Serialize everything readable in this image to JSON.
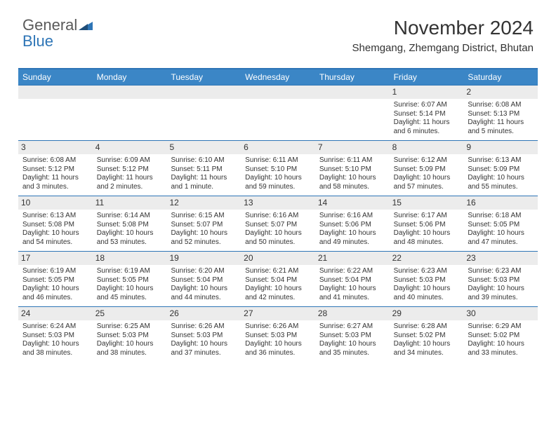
{
  "brand": {
    "word1": "General",
    "word2": "Blue"
  },
  "title": "November 2024",
  "location": "Shemgang, Zhemgang District, Bhutan",
  "colors": {
    "header_bg": "#3b86c6",
    "border": "#2e75b6",
    "daynum_bg": "#ececec",
    "text": "#333333",
    "logo_gray": "#5a5a5a",
    "logo_blue": "#2e75b6"
  },
  "weekdays": [
    "Sunday",
    "Monday",
    "Tuesday",
    "Wednesday",
    "Thursday",
    "Friday",
    "Saturday"
  ],
  "weeks": [
    [
      null,
      null,
      null,
      null,
      null,
      {
        "n": "1",
        "sr": "6:07 AM",
        "ss": "5:14 PM",
        "dl": "11 hours and 6 minutes."
      },
      {
        "n": "2",
        "sr": "6:08 AM",
        "ss": "5:13 PM",
        "dl": "11 hours and 5 minutes."
      }
    ],
    [
      {
        "n": "3",
        "sr": "6:08 AM",
        "ss": "5:12 PM",
        "dl": "11 hours and 3 minutes."
      },
      {
        "n": "4",
        "sr": "6:09 AM",
        "ss": "5:12 PM",
        "dl": "11 hours and 2 minutes."
      },
      {
        "n": "5",
        "sr": "6:10 AM",
        "ss": "5:11 PM",
        "dl": "11 hours and 1 minute."
      },
      {
        "n": "6",
        "sr": "6:11 AM",
        "ss": "5:10 PM",
        "dl": "10 hours and 59 minutes."
      },
      {
        "n": "7",
        "sr": "6:11 AM",
        "ss": "5:10 PM",
        "dl": "10 hours and 58 minutes."
      },
      {
        "n": "8",
        "sr": "6:12 AM",
        "ss": "5:09 PM",
        "dl": "10 hours and 57 minutes."
      },
      {
        "n": "9",
        "sr": "6:13 AM",
        "ss": "5:09 PM",
        "dl": "10 hours and 55 minutes."
      }
    ],
    [
      {
        "n": "10",
        "sr": "6:13 AM",
        "ss": "5:08 PM",
        "dl": "10 hours and 54 minutes."
      },
      {
        "n": "11",
        "sr": "6:14 AM",
        "ss": "5:08 PM",
        "dl": "10 hours and 53 minutes."
      },
      {
        "n": "12",
        "sr": "6:15 AM",
        "ss": "5:07 PM",
        "dl": "10 hours and 52 minutes."
      },
      {
        "n": "13",
        "sr": "6:16 AM",
        "ss": "5:07 PM",
        "dl": "10 hours and 50 minutes."
      },
      {
        "n": "14",
        "sr": "6:16 AM",
        "ss": "5:06 PM",
        "dl": "10 hours and 49 minutes."
      },
      {
        "n": "15",
        "sr": "6:17 AM",
        "ss": "5:06 PM",
        "dl": "10 hours and 48 minutes."
      },
      {
        "n": "16",
        "sr": "6:18 AM",
        "ss": "5:05 PM",
        "dl": "10 hours and 47 minutes."
      }
    ],
    [
      {
        "n": "17",
        "sr": "6:19 AM",
        "ss": "5:05 PM",
        "dl": "10 hours and 46 minutes."
      },
      {
        "n": "18",
        "sr": "6:19 AM",
        "ss": "5:05 PM",
        "dl": "10 hours and 45 minutes."
      },
      {
        "n": "19",
        "sr": "6:20 AM",
        "ss": "5:04 PM",
        "dl": "10 hours and 44 minutes."
      },
      {
        "n": "20",
        "sr": "6:21 AM",
        "ss": "5:04 PM",
        "dl": "10 hours and 42 minutes."
      },
      {
        "n": "21",
        "sr": "6:22 AM",
        "ss": "5:04 PM",
        "dl": "10 hours and 41 minutes."
      },
      {
        "n": "22",
        "sr": "6:23 AM",
        "ss": "5:03 PM",
        "dl": "10 hours and 40 minutes."
      },
      {
        "n": "23",
        "sr": "6:23 AM",
        "ss": "5:03 PM",
        "dl": "10 hours and 39 minutes."
      }
    ],
    [
      {
        "n": "24",
        "sr": "6:24 AM",
        "ss": "5:03 PM",
        "dl": "10 hours and 38 minutes."
      },
      {
        "n": "25",
        "sr": "6:25 AM",
        "ss": "5:03 PM",
        "dl": "10 hours and 38 minutes."
      },
      {
        "n": "26",
        "sr": "6:26 AM",
        "ss": "5:03 PM",
        "dl": "10 hours and 37 minutes."
      },
      {
        "n": "27",
        "sr": "6:26 AM",
        "ss": "5:03 PM",
        "dl": "10 hours and 36 minutes."
      },
      {
        "n": "28",
        "sr": "6:27 AM",
        "ss": "5:03 PM",
        "dl": "10 hours and 35 minutes."
      },
      {
        "n": "29",
        "sr": "6:28 AM",
        "ss": "5:02 PM",
        "dl": "10 hours and 34 minutes."
      },
      {
        "n": "30",
        "sr": "6:29 AM",
        "ss": "5:02 PM",
        "dl": "10 hours and 33 minutes."
      }
    ]
  ],
  "labels": {
    "sunrise": "Sunrise:",
    "sunset": "Sunset:",
    "daylight": "Daylight:"
  }
}
